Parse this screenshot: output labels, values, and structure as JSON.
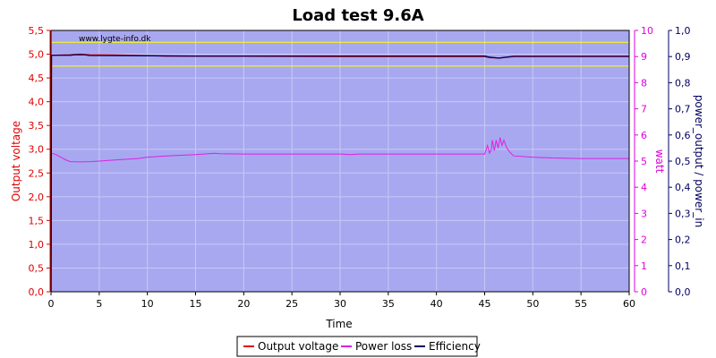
{
  "chart_data": {
    "type": "line",
    "title": "Load test 9.6A",
    "watermark": "www.lygte-info.dk",
    "xlabel": "Time",
    "xlim": [
      0,
      60
    ],
    "x_ticks": [
      "0",
      "5",
      "10",
      "15",
      "20",
      "25",
      "30",
      "35",
      "40",
      "45",
      "50",
      "55",
      "60"
    ],
    "y_left": {
      "label": "Output voltage",
      "lim": [
        0,
        5.5
      ],
      "ticks": [
        "0,0",
        "0,5",
        "1,0",
        "1,5",
        "2,0",
        "2,5",
        "3,0",
        "3,5",
        "4,0",
        "4,5",
        "5,0",
        "5,5"
      ],
      "color": "#e00000"
    },
    "y_right1": {
      "label": "watt",
      "lim": [
        0,
        10
      ],
      "ticks": [
        "0",
        "1",
        "2",
        "3",
        "4",
        "5",
        "6",
        "7",
        "8",
        "9",
        "10"
      ],
      "color": "#e000e0"
    },
    "y_right2": {
      "label": "power_output / power_in",
      "lim": [
        0,
        1
      ],
      "ticks": [
        "0,0",
        "0,1",
        "0,2",
        "0,3",
        "0,4",
        "0,5",
        "0,6",
        "0,7",
        "0,8",
        "0,9",
        "1,0"
      ],
      "color": "#000060"
    },
    "limit_lines": [
      4.75,
      5.25
    ],
    "grid": true,
    "colors": {
      "plot_bg": "#a8a8f0",
      "grid": "#c8c8f8",
      "limit": "#ffff00",
      "voltage": "#e00000",
      "power_loss": "#e020e0",
      "efficiency": "#000060"
    },
    "legend": [
      "Output voltage",
      "Power loss",
      "Efficiency"
    ],
    "series": [
      {
        "name": "Output voltage",
        "axis": "left",
        "points": [
          [
            0,
            0
          ],
          [
            0.05,
            4.98
          ],
          [
            2,
            4.99
          ],
          [
            3,
            5.0
          ],
          [
            4,
            4.99
          ],
          [
            8,
            4.98
          ],
          [
            10,
            4.97
          ],
          [
            12,
            4.96
          ],
          [
            20,
            4.955
          ],
          [
            30,
            4.95
          ],
          [
            40,
            4.95
          ],
          [
            45,
            4.95
          ],
          [
            45.5,
            4.93
          ],
          [
            46.5,
            4.92
          ],
          [
            47,
            4.93
          ],
          [
            48,
            4.95
          ],
          [
            60,
            4.95
          ]
        ]
      },
      {
        "name": "Power loss",
        "axis": "right1",
        "points": [
          [
            0,
            0
          ],
          [
            0.05,
            5.3
          ],
          [
            0.5,
            5.25
          ],
          [
            1,
            5.15
          ],
          [
            1.5,
            5.05
          ],
          [
            2,
            4.98
          ],
          [
            3,
            4.97
          ],
          [
            4,
            4.98
          ],
          [
            5,
            5.0
          ],
          [
            7,
            5.05
          ],
          [
            9,
            5.1
          ],
          [
            10,
            5.15
          ],
          [
            12,
            5.2
          ],
          [
            15,
            5.25
          ],
          [
            17,
            5.3
          ],
          [
            17.5,
            5.28
          ],
          [
            20,
            5.27
          ],
          [
            25,
            5.27
          ],
          [
            30,
            5.27
          ],
          [
            31,
            5.25
          ],
          [
            32,
            5.27
          ],
          [
            35,
            5.27
          ],
          [
            40,
            5.27
          ],
          [
            44,
            5.27
          ],
          [
            45,
            5.27
          ],
          [
            45.3,
            5.6
          ],
          [
            45.5,
            5.3
          ],
          [
            45.7,
            5.45
          ],
          [
            45.8,
            5.8
          ],
          [
            46,
            5.4
          ],
          [
            46.2,
            5.8
          ],
          [
            46.4,
            5.5
          ],
          [
            46.6,
            5.9
          ],
          [
            46.8,
            5.6
          ],
          [
            47,
            5.8
          ],
          [
            47.3,
            5.5
          ],
          [
            47.6,
            5.35
          ],
          [
            48,
            5.2
          ],
          [
            50,
            5.15
          ],
          [
            52,
            5.12
          ],
          [
            55,
            5.1
          ],
          [
            60,
            5.1
          ]
        ]
      },
      {
        "name": "Efficiency",
        "axis": "right2",
        "points": [
          [
            0,
            0
          ],
          [
            0.05,
            0.905
          ],
          [
            2,
            0.905
          ],
          [
            2.5,
            0.907
          ],
          [
            3.5,
            0.907
          ],
          [
            4,
            0.904
          ],
          [
            10,
            0.903
          ],
          [
            15,
            0.902
          ],
          [
            20,
            0.902
          ],
          [
            30,
            0.902
          ],
          [
            40,
            0.902
          ],
          [
            45,
            0.902
          ],
          [
            45.5,
            0.898
          ],
          [
            46,
            0.896
          ],
          [
            46.5,
            0.894
          ],
          [
            47,
            0.897
          ],
          [
            48,
            0.901
          ],
          [
            60,
            0.901
          ]
        ]
      }
    ]
  }
}
